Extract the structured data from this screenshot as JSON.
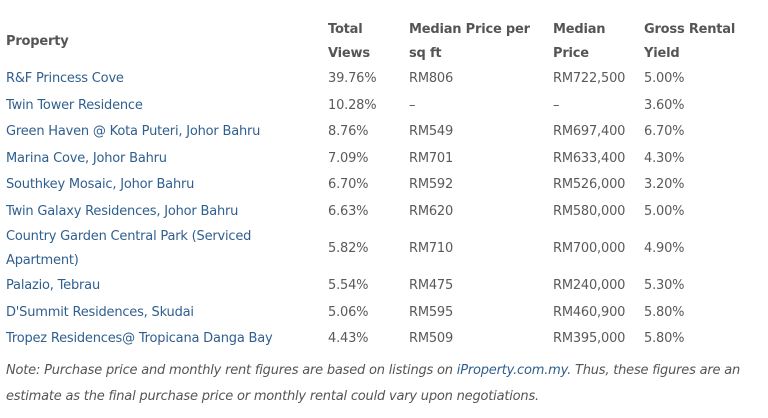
{
  "table": {
    "headers": {
      "property": "Property",
      "total_views": "Total Views",
      "median_psf": "Median Price per sq ft",
      "median_price": "Median Price",
      "gross_yield": "Gross Rental Yield"
    },
    "rows": [
      {
        "property": "R&F Princess Cove",
        "total_views": "39.76%",
        "median_psf": "RM806",
        "median_price": "RM722,500",
        "gross_yield": "5.00%"
      },
      {
        "property": "Twin Tower Residence",
        "total_views": "10.28%",
        "median_psf": "–",
        "median_price": "–",
        "gross_yield": "3.60%"
      },
      {
        "property": "Green Haven @ Kota Puteri, Johor Bahru",
        "total_views": "8.76%",
        "median_psf": "RM549",
        "median_price": "RM697,400",
        "gross_yield": "6.70%"
      },
      {
        "property": "Marina Cove, Johor Bahru",
        "total_views": "7.09%",
        "median_psf": "RM701",
        "median_price": "RM633,400",
        "gross_yield": "4.30%"
      },
      {
        "property": "Southkey Mosaic, Johor Bahru",
        "total_views": "6.70%",
        "median_psf": "RM592",
        "median_price": "RM526,000",
        "gross_yield": "3.20%"
      },
      {
        "property": "Twin Galaxy Residences, Johor Bahru",
        "total_views": "6.63%",
        "median_psf": "RM620",
        "median_price": "RM580,000",
        "gross_yield": "5.00%"
      },
      {
        "property": "Country Garden Central Park (Serviced Apartment)",
        "total_views": "5.82%",
        "median_psf": "RM710",
        "median_price": "RM700,000",
        "gross_yield": "4.90%"
      },
      {
        "property": "Palazio, Tebrau",
        "total_views": "5.54%",
        "median_psf": "RM475",
        "median_price": "RM240,000",
        "gross_yield": "5.30%"
      },
      {
        "property": "D'Summit Residences, Skudai",
        "total_views": "5.06%",
        "median_psf": "RM595",
        "median_price": "RM460,900",
        "gross_yield": "5.80%"
      },
      {
        "property": "Tropez Residences@ Tropicana Danga Bay",
        "total_views": "4.43%",
        "median_psf": "RM509",
        "median_price": "RM395,000",
        "gross_yield": "5.80%"
      }
    ]
  },
  "note": {
    "before_link": "Note: Purchase price and monthly rent figures are based on listings on ",
    "link_text": "iProperty.com.my",
    "after_link": ". Thus, these figures are an estimate as the final purchase price or monthly rental could vary upon negotiations."
  },
  "colors": {
    "link": "#2f5f8f",
    "text": "#555555"
  }
}
